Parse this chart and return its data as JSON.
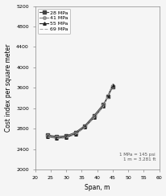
{
  "title": "",
  "xlabel": "Span, m",
  "ylabel": "Cost index per square meter",
  "xlim": [
    20,
    60
  ],
  "ylim": [
    2000,
    5200
  ],
  "xticks": [
    20,
    25,
    30,
    35,
    40,
    45,
    50,
    55,
    60
  ],
  "yticks": [
    2000,
    2400,
    2800,
    3200,
    3600,
    4000,
    4400,
    4800,
    5200
  ],
  "annotation": "1 MPa = 145 psi\n1 m = 3.281 ft",
  "series": [
    {
      "label": "28 MPa",
      "x": [
        24,
        27,
        30,
        33,
        36,
        39,
        42,
        43.5,
        45
      ],
      "y": [
        2680,
        2650,
        2660,
        2730,
        2860,
        3060,
        3280,
        3430,
        3620
      ],
      "marker": "s",
      "markersize": 2.5,
      "color": "#444444",
      "linestyle": "-",
      "linewidth": 0.8,
      "fillstyle": "full"
    },
    {
      "label": "41 MPa",
      "x": [
        24,
        27,
        30,
        33,
        36,
        39,
        42,
        43.5,
        45
      ],
      "y": [
        2660,
        2630,
        2640,
        2710,
        2840,
        3040,
        3260,
        3440,
        3640
      ],
      "marker": "o",
      "markersize": 2.5,
      "color": "#888888",
      "linestyle": "-",
      "linewidth": 0.8,
      "fillstyle": "none"
    },
    {
      "label": "55 MPa",
      "x": [
        24,
        27,
        30,
        33,
        36,
        39,
        42,
        43.5,
        45
      ],
      "y": [
        2650,
        2620,
        2630,
        2700,
        2830,
        3020,
        3240,
        3450,
        3660
      ],
      "marker": "^",
      "markersize": 2.5,
      "color": "#222222",
      "linestyle": "-",
      "linewidth": 0.8,
      "fillstyle": "full"
    },
    {
      "label": "69 MPa",
      "x": [
        24,
        27,
        30,
        33,
        36,
        39,
        42,
        43.5,
        45
      ],
      "y": [
        2640,
        2610,
        2620,
        2690,
        2820,
        3010,
        3230,
        3455,
        3670
      ],
      "marker": "none",
      "markersize": 2.5,
      "color": "#aaaaaa",
      "linestyle": "--",
      "linewidth": 0.8,
      "fillstyle": "full"
    }
  ],
  "background_color": "#f5f5f5",
  "legend_fontsize": 4.5,
  "tick_fontsize": 4.5,
  "label_fontsize": 5.5
}
